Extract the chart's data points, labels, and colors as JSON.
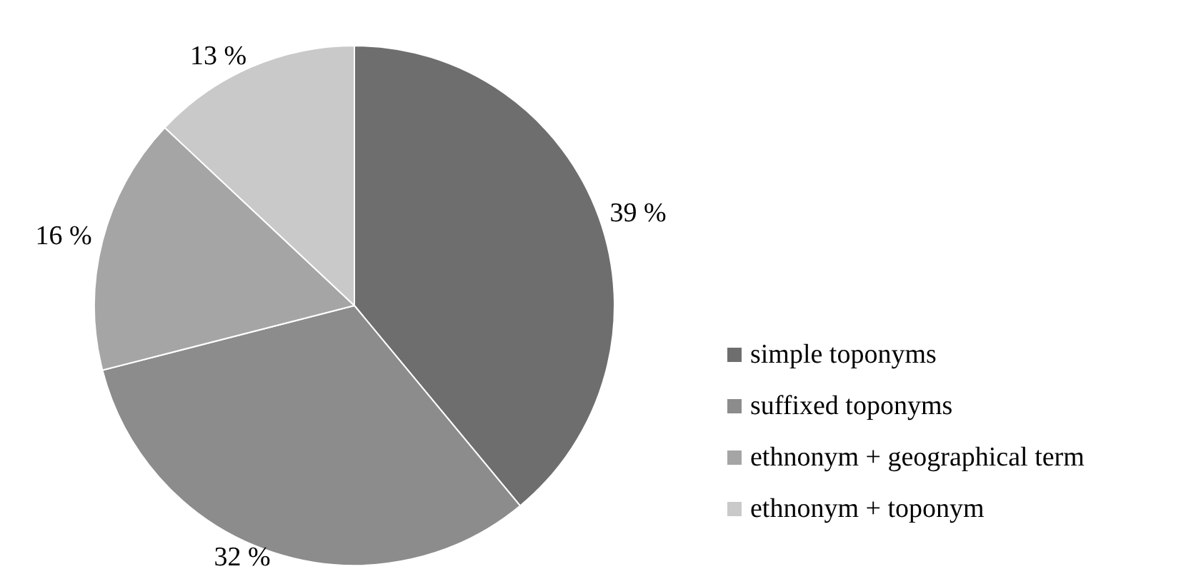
{
  "chart_data": {
    "type": "pie",
    "categories": [
      "simple toponyms",
      "suffixed toponyms",
      "ethnonym + geographical term",
      "ethnonym + toponym"
    ],
    "values": [
      39,
      32,
      16,
      13
    ],
    "value_labels": [
      "39 %",
      "32 %",
      "16 %",
      "13 %"
    ],
    "colors": [
      "#6e6e6e",
      "#8c8c8c",
      "#a5a5a5",
      "#c9c9c9"
    ],
    "legend": "right"
  }
}
